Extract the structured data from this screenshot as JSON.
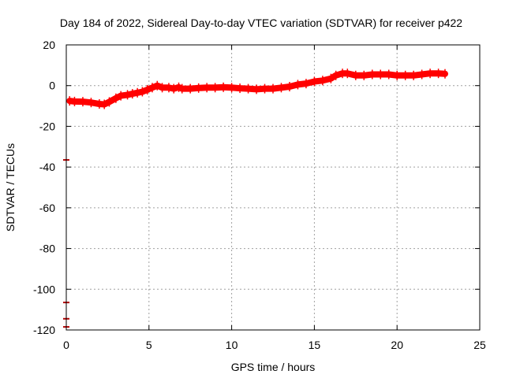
{
  "chart_data": {
    "type": "scatter",
    "title": "Day 184 of 2022, Sidereal Day-to-day VTEC variation (SDTVAR) for receiver p422",
    "xlabel": "GPS time / hours",
    "ylabel": "SDTVAR / TECUs",
    "xlim": [
      0,
      25
    ],
    "ylim": [
      -120,
      20
    ],
    "xticks": [
      0,
      5,
      10,
      15,
      20,
      25
    ],
    "yticks": [
      -120,
      -100,
      -80,
      -60,
      -40,
      -20,
      0,
      20
    ],
    "x_tick_labels": [
      "0",
      "5",
      "10",
      "15",
      "20",
      "25"
    ],
    "y_tick_labels": [
      "-120",
      "-100",
      "-80",
      "-60",
      "-40",
      "-20",
      "0",
      "20"
    ],
    "grid": true,
    "legend": "none",
    "series": [
      {
        "name": "SDTVAR",
        "color": "#ff0000",
        "points": [
          [
            0.2,
            -7.5
          ],
          [
            0.5,
            -7.8
          ],
          [
            1.0,
            -7.9
          ],
          [
            1.5,
            -8.3
          ],
          [
            2.0,
            -9.0
          ],
          [
            2.3,
            -9.2
          ],
          [
            2.6,
            -8.0
          ],
          [
            3.0,
            -6.2
          ],
          [
            3.3,
            -5.0
          ],
          [
            3.7,
            -4.5
          ],
          [
            4.0,
            -4.0
          ],
          [
            4.3,
            -3.5
          ],
          [
            4.6,
            -3.0
          ],
          [
            4.9,
            -2.0
          ],
          [
            5.2,
            -1.0
          ],
          [
            5.5,
            0.0
          ],
          [
            5.8,
            -1.0
          ],
          [
            6.2,
            -1.0
          ],
          [
            6.5,
            -1.5
          ],
          [
            6.8,
            -0.8
          ],
          [
            7.0,
            -1.5
          ],
          [
            7.5,
            -1.5
          ],
          [
            8.0,
            -1.2
          ],
          [
            8.5,
            -1.0
          ],
          [
            9.0,
            -1.0
          ],
          [
            9.5,
            -0.8
          ],
          [
            10.0,
            -1.0
          ],
          [
            10.5,
            -1.3
          ],
          [
            11.0,
            -1.5
          ],
          [
            11.5,
            -1.8
          ],
          [
            12.0,
            -1.5
          ],
          [
            12.5,
            -1.5
          ],
          [
            13.0,
            -1.0
          ],
          [
            13.5,
            -0.5
          ],
          [
            14.0,
            0.5
          ],
          [
            14.5,
            1.0
          ],
          [
            15.0,
            2.0
          ],
          [
            15.5,
            2.5
          ],
          [
            16.0,
            3.5
          ],
          [
            16.3,
            5.0
          ],
          [
            16.7,
            6.0
          ],
          [
            17.0,
            6.0
          ],
          [
            17.5,
            5.0
          ],
          [
            18.0,
            5.0
          ],
          [
            18.5,
            5.5
          ],
          [
            19.0,
            5.5
          ],
          [
            19.5,
            5.5
          ],
          [
            20.0,
            5.0
          ],
          [
            20.5,
            5.0
          ],
          [
            21.0,
            5.0
          ],
          [
            21.5,
            5.5
          ],
          [
            22.0,
            6.0
          ],
          [
            22.5,
            6.0
          ],
          [
            22.9,
            5.8
          ]
        ],
        "outliers": [
          [
            0.0,
            -36.5
          ],
          [
            0.0,
            -106.5
          ],
          [
            0.0,
            -114.5
          ],
          [
            0.0,
            -118.5
          ]
        ]
      }
    ]
  }
}
